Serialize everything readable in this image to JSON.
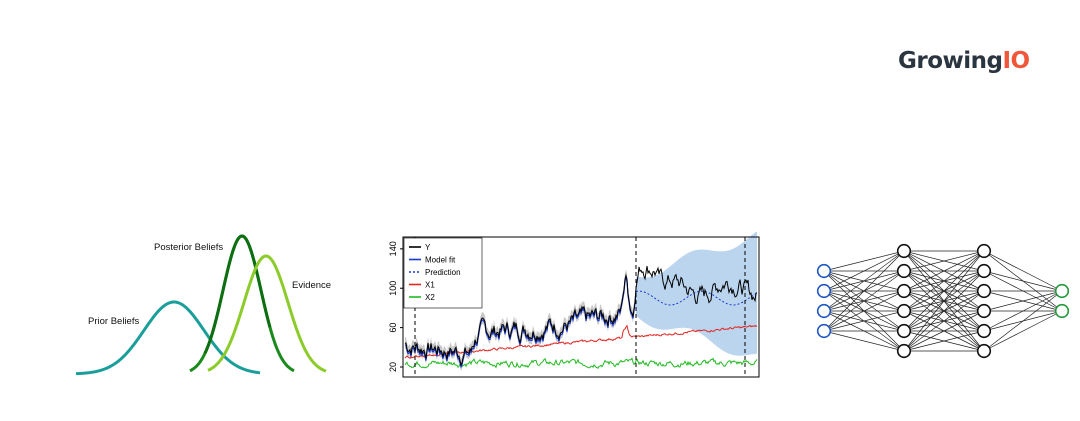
{
  "logo": {
    "text_a": "Growing",
    "text_b": "IO"
  },
  "bayes": {
    "labels": {
      "prior": "Prior Beliefs",
      "posterior": "Posterior Beliefs",
      "evidence": "Evidence"
    },
    "colors": {
      "prior": "#1a9e9a",
      "posterior": "#1a8a1a",
      "posterior_inner": "#0e6e12",
      "evidence": "#8ccc2a"
    }
  },
  "timeseries": {
    "yticks": [
      "20",
      "60",
      "100",
      "140"
    ],
    "legend": [
      {
        "label": "Y",
        "color": "#000000",
        "dash": ""
      },
      {
        "label": "Model fit",
        "color": "#1a3acc",
        "dash": ""
      },
      {
        "label": "Prediction",
        "color": "#1a3acc",
        "dash": "2,2"
      },
      {
        "label": "X1",
        "color": "#e0241e",
        "dash": ""
      },
      {
        "label": "X2",
        "color": "#22bb22",
        "dash": ""
      }
    ],
    "colors": {
      "band": "#b8d3ee",
      "grey_band": "#9a9a9a"
    }
  },
  "network": {
    "layers": [
      4,
      6,
      6,
      2
    ],
    "colors": {
      "input": "#1f57c7",
      "hidden": "#111111",
      "output": "#22993a",
      "edge": "#222222"
    }
  }
}
